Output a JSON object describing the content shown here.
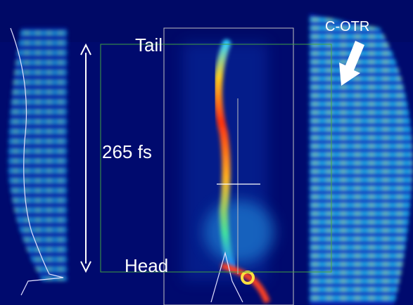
{
  "labels": {
    "tail": "Tail",
    "duration": "265 fs",
    "head": "Head",
    "c_otr": "C-OTR"
  }
}
